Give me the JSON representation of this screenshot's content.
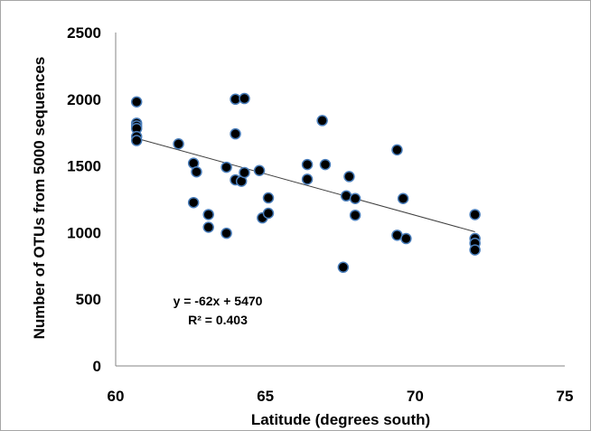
{
  "chart_data": {
    "type": "scatter",
    "title": "",
    "xlabel": "Latitude (degrees south)",
    "ylabel": "Number  of OTUs from 5000 sequences",
    "xlim": [
      60,
      75
    ],
    "ylim": [
      0,
      2500
    ],
    "xticks": [
      60,
      65,
      70,
      75
    ],
    "yticks": [
      0,
      500,
      1000,
      1500,
      2000,
      2500
    ],
    "xtick_labels": [
      "60",
      "65",
      "70",
      "75"
    ],
    "ytick_labels": [
      "0",
      "500",
      "1000",
      "1500",
      "2000",
      "2500"
    ],
    "grid": false,
    "legend": "none",
    "marker_fill": "#000000",
    "marker_edge": "#4a7ebb",
    "series": [
      {
        "points": [
          [
            60.7,
            1980
          ],
          [
            60.7,
            1820
          ],
          [
            60.7,
            1800
          ],
          [
            60.7,
            1780
          ],
          [
            60.7,
            1720
          ],
          [
            60.7,
            1690
          ],
          [
            62.1,
            1665
          ],
          [
            62.6,
            1520
          ],
          [
            62.7,
            1455
          ],
          [
            62.6,
            1225
          ],
          [
            63.1,
            1135
          ],
          [
            63.1,
            1040
          ],
          [
            63.7,
            1490
          ],
          [
            63.7,
            995
          ],
          [
            64.0,
            2000
          ],
          [
            64.3,
            2005
          ],
          [
            64.0,
            1740
          ],
          [
            64.0,
            1395
          ],
          [
            64.2,
            1385
          ],
          [
            64.3,
            1450
          ],
          [
            64.8,
            1465
          ],
          [
            64.9,
            1110
          ],
          [
            65.1,
            1260
          ],
          [
            65.1,
            1145
          ],
          [
            66.4,
            1510
          ],
          [
            66.4,
            1400
          ],
          [
            66.9,
            1840
          ],
          [
            67.0,
            1510
          ],
          [
            67.7,
            1275
          ],
          [
            67.8,
            1420
          ],
          [
            68.0,
            1255
          ],
          [
            68.0,
            1130
          ],
          [
            67.6,
            740
          ],
          [
            69.4,
            1620
          ],
          [
            69.6,
            1255
          ],
          [
            69.4,
            980
          ],
          [
            69.7,
            955
          ],
          [
            72.0,
            1135
          ],
          [
            72.0,
            955
          ],
          [
            72.0,
            920
          ],
          [
            72.0,
            870
          ]
        ]
      }
    ],
    "trendline": {
      "slope": -62,
      "intercept": 5470,
      "x_range": [
        60.7,
        72.0
      ],
      "color": "#404040"
    },
    "annotations": {
      "equation": "y = -62x + 5470",
      "r_squared": "R² = 0.403"
    }
  }
}
